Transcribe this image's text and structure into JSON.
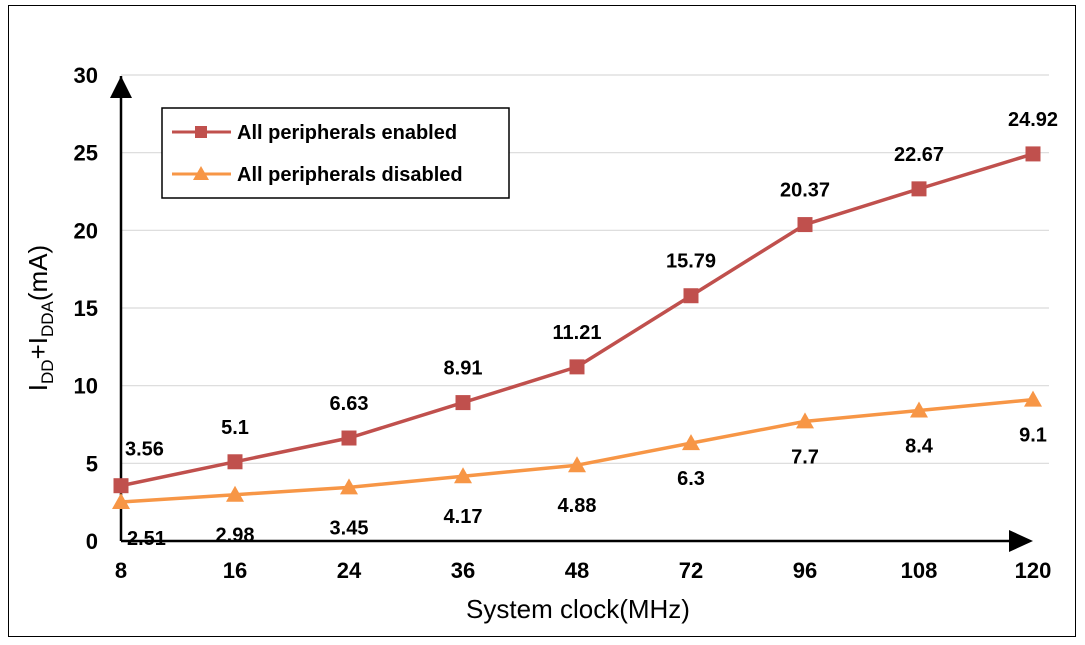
{
  "chart_data": {
    "type": "line",
    "categories": [
      "8",
      "16",
      "24",
      "36",
      "48",
      "72",
      "96",
      "108",
      "120"
    ],
    "series": [
      {
        "name": "All peripherals enabled",
        "values": [
          3.56,
          5.1,
          6.63,
          8.91,
          11.21,
          15.79,
          20.37,
          22.67,
          24.92
        ],
        "labels": [
          "3.56",
          "5.1",
          "6.63",
          "8.91",
          "11.21",
          "15.79",
          "20.37",
          "22.67",
          "24.92"
        ],
        "color": "#c0504d",
        "marker": "square"
      },
      {
        "name": "All peripherals disabled",
        "values": [
          2.51,
          2.98,
          3.45,
          4.17,
          4.88,
          6.3,
          7.7,
          8.4,
          9.1
        ],
        "labels": [
          "2.51",
          "2.98",
          "3.45",
          "4.17",
          "4.88",
          "6.3",
          "7.7",
          "8.4",
          "9.1"
        ],
        "color": "#f79646",
        "marker": "triangle"
      }
    ],
    "xlabel": "System clock(MHz)",
    "ylabel": {
      "main1": "I",
      "sub1": "DD",
      "plus": "+I",
      "sub2": "DDA",
      "unit": "(mA)"
    },
    "ylim": [
      0,
      30
    ],
    "yticks": [
      "0",
      "5",
      "10",
      "15",
      "20",
      "25",
      "30"
    ],
    "grid": true,
    "legend_position": "top-left"
  }
}
